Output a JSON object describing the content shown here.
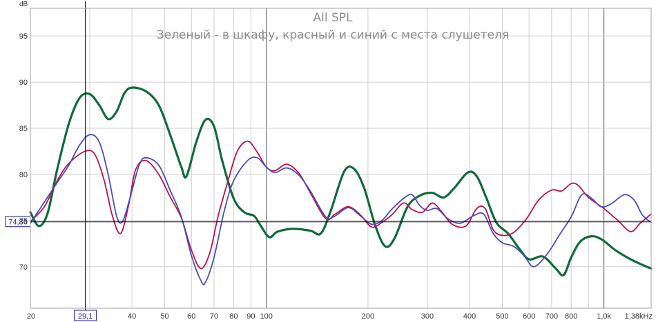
{
  "chart_data": {
    "type": "line",
    "title": "All SPL",
    "subtitle": "Зеленый - в шкафу, красный и синий с места слушетеля",
    "ylabel": "dB",
    "x_scale": "log",
    "xlim": [
      20,
      1380
    ],
    "ylim": [
      65.5,
      98
    ],
    "grid": true,
    "x_ticks": [
      {
        "value": 20,
        "label": "20"
      },
      {
        "value": 40,
        "label": "40"
      },
      {
        "value": 50,
        "label": "50"
      },
      {
        "value": 60,
        "label": "60"
      },
      {
        "value": 70,
        "label": "70"
      },
      {
        "value": 80,
        "label": "80"
      },
      {
        "value": 90,
        "label": "90"
      },
      {
        "value": 100,
        "label": "100"
      },
      {
        "value": 200,
        "label": "200"
      },
      {
        "value": 300,
        "label": "300"
      },
      {
        "value": 400,
        "label": "400"
      },
      {
        "value": 500,
        "label": "500"
      },
      {
        "value": 600,
        "label": "600"
      },
      {
        "value": 700,
        "label": "700"
      },
      {
        "value": 800,
        "label": "800"
      },
      {
        "value": 1000,
        "label": "1,0k"
      },
      {
        "value": 1380,
        "label": "1,38kHz"
      }
    ],
    "y_ticks": [
      {
        "value": 70,
        "label": "70"
      },
      {
        "value": 75,
        "label": "75"
      },
      {
        "value": 80,
        "label": "80"
      },
      {
        "value": 85,
        "label": "85"
      },
      {
        "value": 90,
        "label": "90"
      },
      {
        "value": 95,
        "label": "95"
      }
    ],
    "cursor": {
      "x": 29.1,
      "x_label": "29,1",
      "y": 74.86,
      "y_label": "74,86"
    },
    "series": [
      {
        "color": "#0f6b3a",
        "width": 3.2,
        "points": [
          [
            20,
            75.9
          ],
          [
            21.2,
            74.4
          ],
          [
            22.5,
            75.8
          ],
          [
            24,
            80.5
          ],
          [
            26,
            85.5
          ],
          [
            28,
            88.3
          ],
          [
            30,
            88.7
          ],
          [
            32,
            87.5
          ],
          [
            34,
            86
          ],
          [
            36,
            86.8
          ],
          [
            38,
            88.8
          ],
          [
            40,
            89.4
          ],
          [
            44,
            89
          ],
          [
            48,
            87.5
          ],
          [
            52,
            84.2
          ],
          [
            56,
            80.8
          ],
          [
            58,
            79.8
          ],
          [
            62,
            83.5
          ],
          [
            66,
            85.9
          ],
          [
            70,
            85.2
          ],
          [
            74,
            81.5
          ],
          [
            80,
            77.4
          ],
          [
            86,
            75.9
          ],
          [
            92,
            75.5
          ],
          [
            96,
            74.5
          ],
          [
            102,
            73.2
          ],
          [
            108,
            73.8
          ],
          [
            120,
            74.1
          ],
          [
            135,
            73.9
          ],
          [
            145,
            73.6
          ],
          [
            155,
            76
          ],
          [
            170,
            80.3
          ],
          [
            182,
            80.6
          ],
          [
            195,
            78.5
          ],
          [
            210,
            74.5
          ],
          [
            225,
            72.2
          ],
          [
            240,
            73.1
          ],
          [
            262,
            76.5
          ],
          [
            285,
            77.7
          ],
          [
            310,
            78
          ],
          [
            335,
            77.5
          ],
          [
            360,
            78.5
          ],
          [
            395,
            80.2
          ],
          [
            420,
            79.8
          ],
          [
            448,
            77.5
          ],
          [
            480,
            74.8
          ],
          [
            520,
            73.6
          ],
          [
            560,
            72
          ],
          [
            600,
            70.8
          ],
          [
            660,
            71.1
          ],
          [
            720,
            69.8
          ],
          [
            760,
            69.1
          ],
          [
            800,
            71
          ],
          [
            850,
            72.7
          ],
          [
            920,
            73.3
          ],
          [
            990,
            72.9
          ],
          [
            1080,
            71.8
          ],
          [
            1200,
            70.8
          ],
          [
            1300,
            70.2
          ],
          [
            1380,
            69.8
          ]
        ]
      },
      {
        "color": "#c0104a",
        "width": 1.8,
        "points": [
          [
            20,
            74.9
          ],
          [
            22,
            76.5
          ],
          [
            24,
            79.3
          ],
          [
            26,
            81.2
          ],
          [
            29,
            82.5
          ],
          [
            31,
            82.2
          ],
          [
            33,
            79.5
          ],
          [
            35,
            75.5
          ],
          [
            37,
            73.6
          ],
          [
            39,
            76.5
          ],
          [
            41,
            80.5
          ],
          [
            44,
            81.5
          ],
          [
            48,
            80
          ],
          [
            52,
            77.5
          ],
          [
            56,
            75.3
          ],
          [
            60,
            71.8
          ],
          [
            64,
            69.8
          ],
          [
            68,
            71.5
          ],
          [
            72,
            75.5
          ],
          [
            77,
            79.3
          ],
          [
            82,
            82.5
          ],
          [
            88,
            83.6
          ],
          [
            94,
            82.4
          ],
          [
            100,
            80.8
          ],
          [
            106,
            80.4
          ],
          [
            115,
            81.1
          ],
          [
            125,
            80.1
          ],
          [
            135,
            78
          ],
          [
            150,
            75.2
          ],
          [
            160,
            75.7
          ],
          [
            175,
            76.5
          ],
          [
            190,
            75.6
          ],
          [
            205,
            74.3
          ],
          [
            220,
            74.8
          ],
          [
            235,
            75.6
          ],
          [
            255,
            76.9
          ],
          [
            270,
            76.2
          ],
          [
            290,
            75.9
          ],
          [
            310,
            76.9
          ],
          [
            330,
            76
          ],
          [
            355,
            74.6
          ],
          [
            390,
            74.4
          ],
          [
            420,
            76.3
          ],
          [
            445,
            76.3
          ],
          [
            470,
            74
          ],
          [
            500,
            73.4
          ],
          [
            540,
            73.7
          ],
          [
            590,
            75.2
          ],
          [
            640,
            77.2
          ],
          [
            700,
            78.3
          ],
          [
            750,
            78.2
          ],
          [
            800,
            79
          ],
          [
            840,
            78.8
          ],
          [
            900,
            77.5
          ],
          [
            1000,
            76.3
          ],
          [
            1100,
            75
          ],
          [
            1200,
            73.8
          ],
          [
            1280,
            74.7
          ],
          [
            1380,
            75.7
          ]
        ]
      },
      {
        "color": "#4a4cb8",
        "width": 1.8,
        "points": [
          [
            20,
            74.7
          ],
          [
            22,
            77
          ],
          [
            24,
            79.1
          ],
          [
            26,
            81
          ],
          [
            28,
            83.2
          ],
          [
            30,
            84.3
          ],
          [
            32,
            83.5
          ],
          [
            34,
            80
          ],
          [
            36,
            75.5
          ],
          [
            37.5,
            74.9
          ],
          [
            39.5,
            77.5
          ],
          [
            42,
            81
          ],
          [
            44,
            81.8
          ],
          [
            48,
            81
          ],
          [
            52,
            78.2
          ],
          [
            56,
            75.4
          ],
          [
            60,
            71.2
          ],
          [
            64,
            68.5
          ],
          [
            66,
            68.3
          ],
          [
            70,
            71
          ],
          [
            75,
            76
          ],
          [
            80,
            79.3
          ],
          [
            88,
            81.5
          ],
          [
            94,
            81.8
          ],
          [
            100,
            80.8
          ],
          [
            106,
            80.2
          ],
          [
            115,
            80.7
          ],
          [
            125,
            79.9
          ],
          [
            135,
            78.2
          ],
          [
            150,
            75.4
          ],
          [
            160,
            75.5
          ],
          [
            175,
            76.4
          ],
          [
            190,
            75.5
          ],
          [
            205,
            74.6
          ],
          [
            220,
            75
          ],
          [
            235,
            76.2
          ],
          [
            255,
            77.4
          ],
          [
            270,
            77.8
          ],
          [
            285,
            76.6
          ],
          [
            300,
            76.1
          ],
          [
            320,
            76.3
          ],
          [
            345,
            75.2
          ],
          [
            375,
            74.7
          ],
          [
            410,
            75.5
          ],
          [
            440,
            75.7
          ],
          [
            470,
            73.6
          ],
          [
            500,
            72.6
          ],
          [
            540,
            72.2
          ],
          [
            580,
            71.2
          ],
          [
            620,
            70
          ],
          [
            680,
            71.4
          ],
          [
            740,
            73.5
          ],
          [
            800,
            75.4
          ],
          [
            860,
            77.8
          ],
          [
            920,
            77.4
          ],
          [
            980,
            76.5
          ],
          [
            1050,
            76.8
          ],
          [
            1150,
            77.8
          ],
          [
            1230,
            77.2
          ],
          [
            1300,
            75.6
          ],
          [
            1380,
            74.8
          ]
        ]
      }
    ]
  }
}
